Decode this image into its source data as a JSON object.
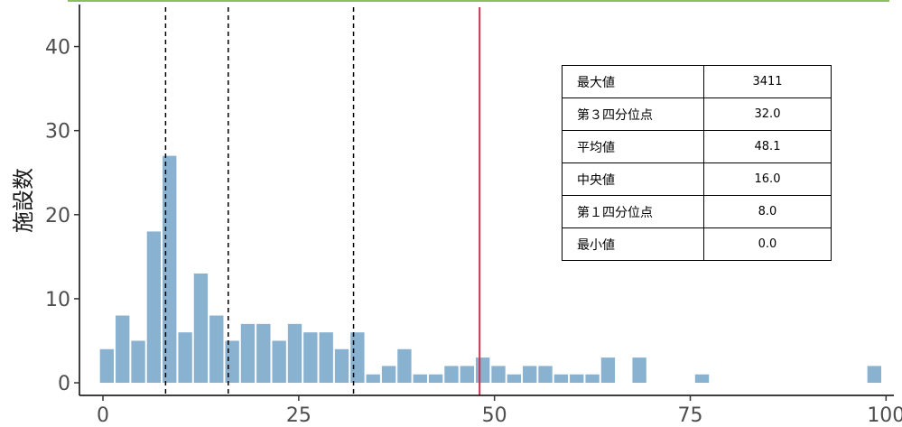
{
  "chart_data": {
    "type": "bar",
    "xlabel": "",
    "ylabel": "施設数",
    "xlim": [
      -3,
      101
    ],
    "ylim": [
      -1.5,
      45
    ],
    "x_ticks": [
      "0",
      "25",
      "50",
      "75",
      "100"
    ],
    "y_ticks": [
      "0",
      "10",
      "20",
      "30",
      "40"
    ],
    "bin_width": 2,
    "bins": [
      {
        "x": 0.5,
        "count": 4
      },
      {
        "x": 2.5,
        "count": 8
      },
      {
        "x": 4.5,
        "count": 5
      },
      {
        "x": 6.5,
        "count": 18
      },
      {
        "x": 8.5,
        "count": 27
      },
      {
        "x": 10.5,
        "count": 6
      },
      {
        "x": 12.5,
        "count": 13
      },
      {
        "x": 14.5,
        "count": 8
      },
      {
        "x": 16.5,
        "count": 5
      },
      {
        "x": 18.5,
        "count": 7
      },
      {
        "x": 20.5,
        "count": 7
      },
      {
        "x": 22.5,
        "count": 5
      },
      {
        "x": 24.5,
        "count": 7
      },
      {
        "x": 26.5,
        "count": 6
      },
      {
        "x": 28.5,
        "count": 6
      },
      {
        "x": 30.5,
        "count": 4
      },
      {
        "x": 32.5,
        "count": 6
      },
      {
        "x": 34.5,
        "count": 1
      },
      {
        "x": 36.5,
        "count": 2
      },
      {
        "x": 38.5,
        "count": 4
      },
      {
        "x": 40.5,
        "count": 1
      },
      {
        "x": 42.5,
        "count": 1
      },
      {
        "x": 44.5,
        "count": 2
      },
      {
        "x": 46.5,
        "count": 2
      },
      {
        "x": 48.5,
        "count": 3
      },
      {
        "x": 50.5,
        "count": 2
      },
      {
        "x": 52.5,
        "count": 1
      },
      {
        "x": 54.5,
        "count": 2
      },
      {
        "x": 56.5,
        "count": 2
      },
      {
        "x": 58.5,
        "count": 1
      },
      {
        "x": 60.5,
        "count": 1
      },
      {
        "x": 62.5,
        "count": 1
      },
      {
        "x": 64.5,
        "count": 3
      },
      {
        "x": 68.5,
        "count": 3
      },
      {
        "x": 76.5,
        "count": 1
      },
      {
        "x": 98.5,
        "count": 2
      }
    ],
    "vlines": [
      {
        "name": "第１四分位点",
        "x": 8.0,
        "style": "dashed",
        "color": "#000000"
      },
      {
        "name": "中央値",
        "x": 16.0,
        "style": "dashed",
        "color": "#000000"
      },
      {
        "name": "第３四分位点",
        "x": 32.0,
        "style": "dashed",
        "color": "#000000"
      },
      {
        "name": "平均値",
        "x": 48.1,
        "style": "solid",
        "color": "#c8324f"
      }
    ],
    "bar_color": "#89b1d0",
    "grid": false
  },
  "stats_table": {
    "rows": [
      {
        "label": "最大値",
        "value": "3411"
      },
      {
        "label": "第３四分位点",
        "value": "32.0"
      },
      {
        "label": "平均値",
        "value": "48.1"
      },
      {
        "label": "中央値",
        "value": "16.0"
      },
      {
        "label": "第１四分位点",
        "value": "8.0"
      },
      {
        "label": "最小値",
        "value": "0.0"
      }
    ]
  },
  "top_rule_color": "#8fbf5a"
}
